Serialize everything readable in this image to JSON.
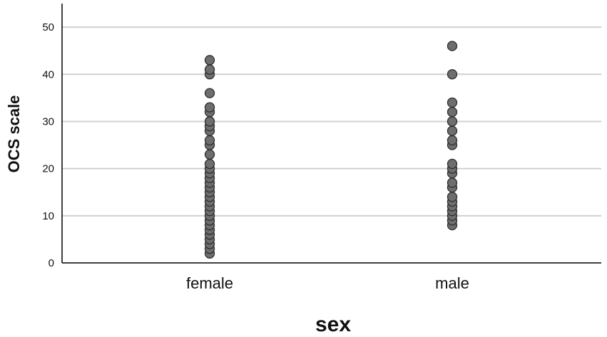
{
  "chart_data": {
    "type": "scatter",
    "title": "",
    "xlabel": "sex",
    "ylabel": "OCS scale",
    "categories": [
      "female",
      "male"
    ],
    "ylim": [
      0,
      55
    ],
    "yticks": [
      0,
      10,
      20,
      30,
      40,
      50
    ],
    "grid": true,
    "series": [
      {
        "category": "female",
        "values": [
          2,
          3,
          4,
          5,
          6,
          7,
          8,
          9,
          10,
          11,
          12,
          13,
          14,
          15,
          16,
          17,
          18,
          19,
          20,
          21,
          23,
          25,
          26,
          28,
          29,
          30,
          32,
          33,
          36,
          40,
          41,
          43
        ]
      },
      {
        "category": "male",
        "values": [
          8,
          9,
          10,
          11,
          12,
          13,
          14,
          16,
          17,
          19,
          20,
          21,
          25,
          26,
          28,
          30,
          32,
          34,
          40,
          46
        ]
      }
    ],
    "colors": {
      "marker_fill": "#6e6e6e",
      "marker_stroke": "#2e2e2e",
      "grid": "#d0d0d0",
      "axis": "#000000"
    }
  }
}
